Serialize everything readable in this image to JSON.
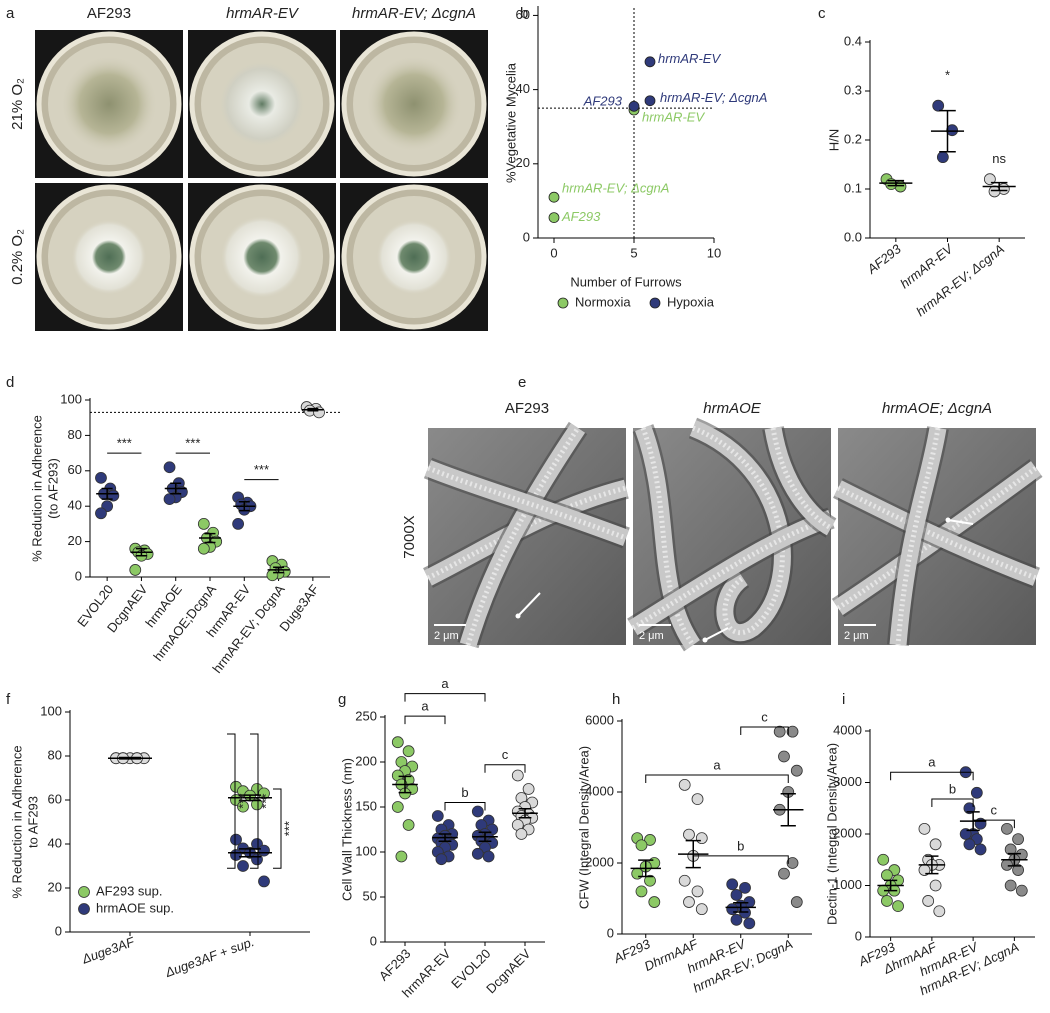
{
  "photo_panels": [
    {
      "panel": "a",
      "columns": [
        "AF293",
        "hrmAR-EV",
        "hrmAR-EV; ΔcgnA"
      ],
      "rows": [
        "21% O₂",
        "0.2% O₂"
      ]
    },
    {
      "panel": "e",
      "columns": [
        "AF293",
        "hrmAOE",
        "hrmAOE; ΔcgnA"
      ],
      "rows": [
        "7000X"
      ],
      "scale_bars": [
        "2 μm",
        "2 μm",
        "2 μm"
      ]
    }
  ],
  "chart_data": [
    {
      "type": "scatter",
      "panel": "b",
      "x_label": "Number of Furrows",
      "y_label": "%Vegetative Mycelia",
      "xlim": [
        -1,
        10
      ],
      "xticks": [
        0,
        5,
        10
      ],
      "ylim": [
        0,
        62
      ],
      "yticks": [
        0,
        20,
        40,
        60
      ],
      "reference_lines": {
        "x": 5,
        "y": 35
      },
      "legend": "bottom",
      "series": [
        {
          "name": "Normoxia",
          "color": "#8cc965",
          "x": [
            0,
            0,
            5
          ],
          "values": [
            11,
            5.5,
            34.5
          ],
          "point_labels": [
            "hrmAR-EV; ΔcgnA",
            "AF293",
            "hrmAR-EV"
          ]
        },
        {
          "name": "Hypoxia",
          "color": "#2f3a7a",
          "x": [
            6,
            5,
            6
          ],
          "values": [
            47.5,
            35.5,
            37
          ],
          "point_labels": [
            "hrmAR-EV",
            "AF293",
            "hrmAR-EV; ΔcgnA"
          ]
        }
      ]
    },
    {
      "type": "dot",
      "panel": "c",
      "y_label": "H/N",
      "categories": [
        "AF293",
        "hrmAR-EV",
        "hrmAR-EV; ΔcgnA"
      ],
      "colors": [
        "#8cc965",
        "#2f3a7a",
        "#d9d9d9"
      ],
      "points": [
        [
          0.12,
          0.105,
          0.11
        ],
        [
          0.27,
          0.22,
          0.165
        ],
        [
          0.12,
          0.1,
          0.095
        ]
      ],
      "means": [
        0.112,
        0.218,
        0.105
      ],
      "sems": [
        0.005,
        0.042,
        0.008
      ],
      "ylim": [
        0,
        0.4
      ],
      "yticks": [
        {
          "value": 0,
          "label": "0.0"
        },
        0.1,
        0.2,
        0.3,
        0.4
      ],
      "annotations": [
        {
          "text": "*",
          "x": 1,
          "y": 0.33
        },
        {
          "text": "ns",
          "x": 2,
          "y": 0.16
        }
      ]
    },
    {
      "type": "dot",
      "panel": "d",
      "y_label": [
        "% Redution in Adherence",
        "(to AF293)"
      ],
      "categories": [
        "EVOL20",
        "DcgnAEV",
        "hrmAOE",
        "hrmAOE;DcgnA",
        "hrmAR-EV",
        "hrmAR-EV; DcgnA",
        "Duge3AF"
      ],
      "colors": [
        "#2f3a7a",
        "#8cc965",
        "#2f3a7a",
        "#8cc965",
        "#2f3a7a",
        "#8cc965",
        "#d9d9d9"
      ],
      "points": [
        [
          56,
          50,
          47,
          46,
          40,
          36
        ],
        [
          16,
          15,
          14,
          13,
          12,
          4
        ],
        [
          62,
          53,
          50,
          48,
          45,
          44
        ],
        [
          30,
          25,
          22,
          20,
          17,
          16
        ],
        [
          45,
          42,
          41,
          40,
          38,
          30
        ],
        [
          9,
          7,
          5,
          3,
          2,
          1
        ],
        [
          96,
          95,
          94,
          93
        ]
      ],
      "means": [
        47,
        14,
        50,
        22,
        40,
        4,
        94.5
      ],
      "sems": [
        3,
        2,
        3,
        2.5,
        2.5,
        1.5,
        0.6
      ],
      "ylim": [
        0,
        100
      ],
      "yticks": [
        0,
        20,
        40,
        60,
        80,
        100
      ],
      "reference_line": 93,
      "brackets": [
        {
          "from": 0,
          "to": 1,
          "y": 70,
          "label": "***"
        },
        {
          "from": 2,
          "to": 3,
          "y": 70,
          "label": "***"
        },
        {
          "from": 4,
          "to": 5,
          "y": 55,
          "label": "***"
        }
      ]
    },
    {
      "type": "dot",
      "panel": "f",
      "y_label": [
        "% Reduction in Adherence",
        "to AF293"
      ],
      "categories": [
        "Δuge3AF",
        "Δuge3AF + sup."
      ],
      "colors": [
        "#dcdcdc"
      ],
      "points": [
        [
          79,
          79,
          79,
          79,
          79,
          79,
          79,
          79
        ]
      ],
      "means": [
        79
      ],
      "sems": [
        0.3
      ],
      "series": [
        {
          "name": "AF293 sup.",
          "color": "#8cc965",
          "points": [
            null,
            [
              66,
              65,
              64,
              63,
              62,
              60,
              58,
              57
            ]
          ],
          "means": [
            null,
            61
          ],
          "sems": [
            null,
            1.2
          ]
        },
        {
          "name": "hrmAOE sup.",
          "color": "#2f3a7a",
          "points": [
            null,
            [
              42,
              40,
              38,
              37,
              36,
              35,
              33,
              30,
              23
            ]
          ],
          "means": [
            null,
            36
          ],
          "sems": [
            null,
            1.8
          ]
        }
      ],
      "ylim": [
        0,
        100
      ],
      "yticks": [
        0,
        20,
        40,
        60,
        80,
        100
      ],
      "legend": "lower left",
      "vertical_brackets": [
        {
          "from": 90,
          "to": 29,
          "label": "***"
        },
        {
          "from": 90,
          "to": 29,
          "label": "***"
        },
        {
          "from": 65,
          "to": 29,
          "label": "***"
        }
      ]
    },
    {
      "type": "dot",
      "panel": "g",
      "y_label": "Cell Wall Thickness (nm)",
      "categories": [
        "AF293",
        "hrmAR-EV",
        "EVOL20",
        "DcgnAEV"
      ],
      "colors": [
        "#8cc965",
        "#2f3a7a",
        "#2f3a7a",
        "#d9d9d9"
      ],
      "points": [
        [
          222,
          212,
          200,
          195,
          190,
          185,
          180,
          175,
          170,
          165,
          150,
          130,
          95
        ],
        [
          140,
          130,
          125,
          120,
          118,
          115,
          112,
          110,
          108,
          105,
          100,
          95,
          92
        ],
        [
          145,
          135,
          130,
          125,
          120,
          118,
          115,
          112,
          110,
          105,
          98,
          95
        ],
        [
          185,
          170,
          160,
          155,
          150,
          145,
          142,
          140,
          138,
          135,
          130,
          125,
          120
        ]
      ],
      "means": [
        175,
        116,
        117,
        143
      ],
      "sems": [
        9,
        4,
        5,
        5
      ],
      "ylim": [
        0,
        250
      ],
      "yticks": [
        0,
        50,
        100,
        150,
        200,
        250
      ],
      "brackets": [
        {
          "from": 0,
          "to": 2,
          "y": 276,
          "label": "a"
        },
        {
          "from": 0,
          "to": 1,
          "y": 251,
          "label": "a"
        },
        {
          "from": 1,
          "to": 2,
          "y": 155,
          "label": "b"
        },
        {
          "from": 2,
          "to": 3,
          "y": 197,
          "label": "c"
        }
      ]
    },
    {
      "type": "dot",
      "panel": "h",
      "y_label": "CFW (Integral Density/Area)",
      "categories": [
        "AF293",
        "DhrmAAF",
        "hrmAR-EV",
        "hrmAR-EV; DcgnA"
      ],
      "colors": [
        "#8cc965",
        "#d9d9d9",
        "#2f3a7a",
        "#8a8a8a"
      ],
      "points": [
        [
          2700,
          2650,
          2500,
          2000,
          1900,
          1700,
          1500,
          1200,
          900
        ],
        [
          4200,
          3800,
          2800,
          2700,
          2200,
          1500,
          1200,
          900,
          700
        ],
        [
          1400,
          1300,
          1100,
          900,
          800,
          700,
          600,
          400,
          300
        ],
        [
          5700,
          5700,
          5000,
          4600,
          4000,
          3500,
          2000,
          1700,
          900
        ]
      ],
      "means": [
        1850,
        2250,
        750,
        3500
      ],
      "sems": [
        230,
        380,
        130,
        450
      ],
      "ylim": [
        0,
        6000
      ],
      "yticks": [
        0,
        2000,
        4000,
        6000
      ],
      "brackets": [
        {
          "from": 0,
          "to": 3,
          "y": 4480,
          "label": "a"
        },
        {
          "from": 1,
          "to": 3,
          "y": 2200,
          "label": "b"
        },
        {
          "from": 2,
          "to": 3,
          "y": 5830,
          "label": "c"
        }
      ]
    },
    {
      "type": "dot",
      "panel": "i",
      "y_label": "Dectin-1 (Integral Density/Area)",
      "categories": [
        "AF293",
        "ΔhrmAAF",
        "hrmAR-EV",
        "hrmAR-EV; ΔcgnA"
      ],
      "colors": [
        "#8cc965",
        "#d9d9d9",
        "#2f3a7a",
        "#8a8a8a"
      ],
      "points": [
        [
          1500,
          1300,
          1200,
          1100,
          1000,
          900,
          900,
          700,
          600
        ],
        [
          2100,
          1800,
          1500,
          1400,
          1400,
          1300,
          1000,
          700,
          500
        ],
        [
          3200,
          2800,
          2500,
          2200,
          2000,
          2000,
          1900,
          1800,
          1700
        ],
        [
          2100,
          1900,
          1700,
          1600,
          1500,
          1400,
          1300,
          1000,
          900
        ]
      ],
      "means": [
        1000,
        1400,
        2250,
        1500
      ],
      "sems": [
        100,
        170,
        180,
        120
      ],
      "ylim": [
        0,
        4000
      ],
      "yticks": [
        0,
        1000,
        2000,
        3000,
        4000
      ],
      "brackets": [
        {
          "from": 0,
          "to": 2,
          "y": 3200,
          "label": "a"
        },
        {
          "from": 1,
          "to": 2,
          "y": 2680,
          "label": "b"
        },
        {
          "from": 2,
          "to": 3,
          "y": 2270,
          "label": "c"
        }
      ]
    }
  ]
}
